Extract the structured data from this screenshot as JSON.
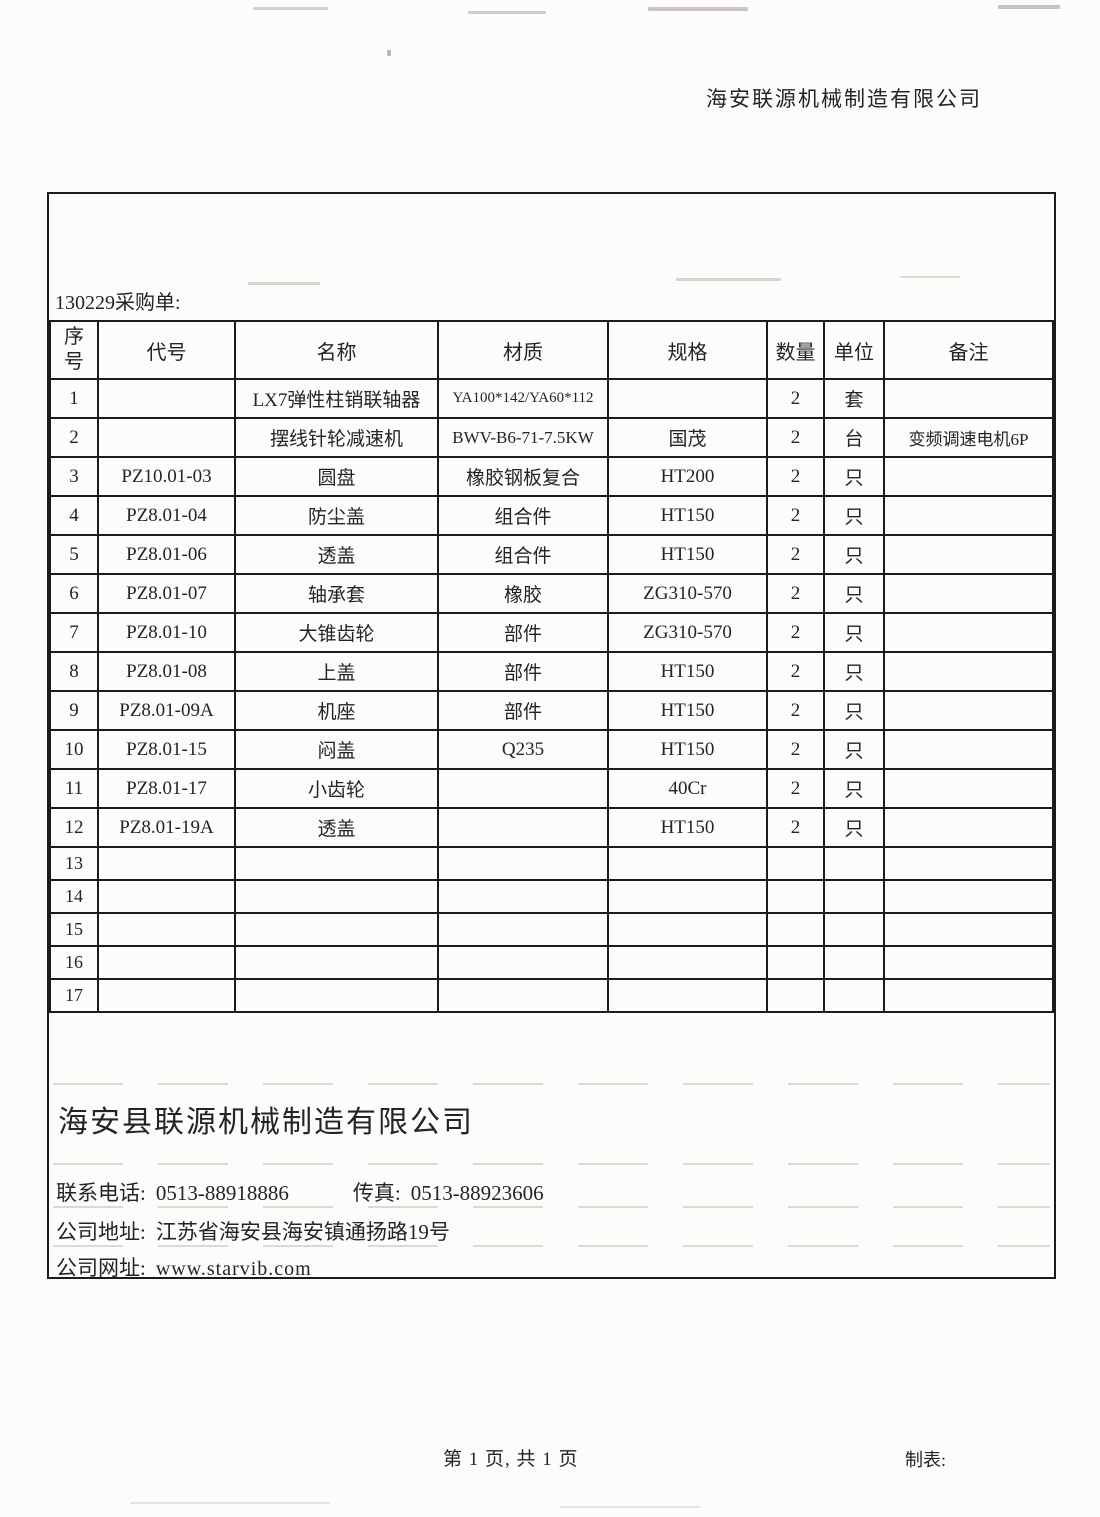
{
  "page_header": {
    "company": "海安联源机械制造有限公司"
  },
  "doc": {
    "order_label": "130229采购单:",
    "table": {
      "headers": [
        "序号",
        "代号",
        "名称",
        "材质",
        "规格",
        "数量",
        "单位",
        "备注"
      ],
      "rows": [
        {
          "no": "1",
          "code": "",
          "name": "LX7弹性柱销联轴器",
          "material": "YA100*142/YA60*112",
          "spec": "",
          "qty": "2",
          "unit": "套",
          "note": ""
        },
        {
          "no": "2",
          "code": "",
          "name": "摆线针轮减速机",
          "material": "BWV-B6-71-7.5KW",
          "spec": "国茂",
          "qty": "2",
          "unit": "台",
          "note": "变频调速电机6P"
        },
        {
          "no": "3",
          "code": "PZ10.01-03",
          "name": "圆盘",
          "material": "橡胶钢板复合",
          "spec": "HT200",
          "qty": "2",
          "unit": "只",
          "note": ""
        },
        {
          "no": "4",
          "code": "PZ8.01-04",
          "name": "防尘盖",
          "material": "组合件",
          "spec": "HT150",
          "qty": "2",
          "unit": "只",
          "note": ""
        },
        {
          "no": "5",
          "code": "PZ8.01-06",
          "name": "透盖",
          "material": "组合件",
          "spec": "HT150",
          "qty": "2",
          "unit": "只",
          "note": ""
        },
        {
          "no": "6",
          "code": "PZ8.01-07",
          "name": "轴承套",
          "material": "橡胶",
          "spec": "ZG310-570",
          "qty": "2",
          "unit": "只",
          "note": ""
        },
        {
          "no": "7",
          "code": "PZ8.01-10",
          "name": "大锥齿轮",
          "material": "部件",
          "spec": "ZG310-570",
          "qty": "2",
          "unit": "只",
          "note": ""
        },
        {
          "no": "8",
          "code": "PZ8.01-08",
          "name": "上盖",
          "material": "部件",
          "spec": "HT150",
          "qty": "2",
          "unit": "只",
          "note": ""
        },
        {
          "no": "9",
          "code": "PZ8.01-09A",
          "name": "机座",
          "material": "部件",
          "spec": "HT150",
          "qty": "2",
          "unit": "只",
          "note": ""
        },
        {
          "no": "10",
          "code": "PZ8.01-15",
          "name": "闷盖",
          "material": "Q235",
          "spec": "HT150",
          "qty": "2",
          "unit": "只",
          "note": ""
        },
        {
          "no": "11",
          "code": "PZ8.01-17",
          "name": "小齿轮",
          "material": "",
          "spec": "40Cr",
          "qty": "2",
          "unit": "只",
          "note": ""
        },
        {
          "no": "12",
          "code": "PZ8.01-19A",
          "name": "透盖",
          "material": "",
          "spec": "HT150",
          "qty": "2",
          "unit": "只",
          "note": ""
        },
        {
          "no": "13",
          "code": "",
          "name": "",
          "material": "",
          "spec": "",
          "qty": "",
          "unit": "",
          "note": ""
        },
        {
          "no": "14",
          "code": "",
          "name": "",
          "material": "",
          "spec": "",
          "qty": "",
          "unit": "",
          "note": ""
        },
        {
          "no": "15",
          "code": "",
          "name": "",
          "material": "",
          "spec": "",
          "qty": "",
          "unit": "",
          "note": ""
        },
        {
          "no": "16",
          "code": "",
          "name": "",
          "material": "",
          "spec": "",
          "qty": "",
          "unit": "",
          "note": ""
        },
        {
          "no": "17",
          "code": "",
          "name": "",
          "material": "",
          "spec": "",
          "qty": "",
          "unit": "",
          "note": ""
        }
      ]
    },
    "footer": {
      "company_name": "海安县联源机械制造有限公司",
      "phone_label": "联系电话:",
      "phone": "0513-88918886",
      "fax_label": "传真:",
      "fax": "0513-88923606",
      "address_label": "公司地址:",
      "address": "江苏省海安县海安镇通扬路19号",
      "website_label": "公司网址:",
      "website": "www.starvib.com"
    }
  },
  "page_footer": {
    "pagination": "第 1 页, 共 1 页",
    "prepared_by_label": "制表:"
  },
  "colors": {
    "ink": "#242424",
    "border": "#1b1b1b",
    "paper": "#fcfcfb",
    "faint_line": "#ddd8d4"
  }
}
